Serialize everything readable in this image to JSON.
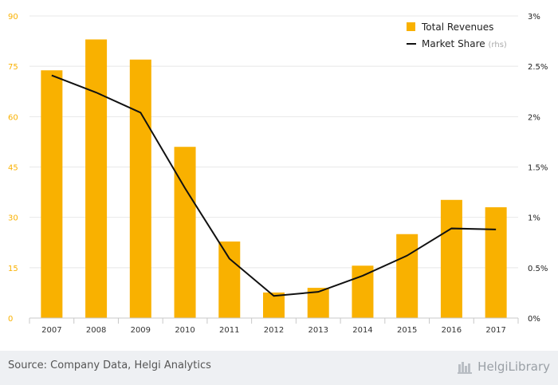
{
  "chart_data": {
    "type": "bar",
    "categories": [
      "2007",
      "2008",
      "2009",
      "2010",
      "2011",
      "2012",
      "2013",
      "2014",
      "2015",
      "2016",
      "2017"
    ],
    "series": [
      {
        "name": "Total Revenues",
        "type": "bar",
        "axis": "left",
        "color": "#f9b100",
        "values": [
          73.8,
          83.0,
          77.0,
          51.0,
          22.8,
          7.6,
          9.0,
          15.6,
          25.0,
          35.2,
          33.0
        ]
      },
      {
        "name": "Market Share",
        "name_suffix": "(rhs)",
        "type": "line",
        "axis": "right",
        "color": "#111111",
        "values": [
          2.41,
          2.24,
          2.04,
          1.29,
          0.59,
          0.22,
          0.26,
          0.42,
          0.62,
          0.89,
          0.88
        ]
      }
    ],
    "y_left": {
      "min": 0,
      "max": 90,
      "ticks": [
        "0",
        "15",
        "30",
        "45",
        "60",
        "75",
        "90"
      ],
      "color": "#f9b100"
    },
    "y_right": {
      "min": 0,
      "max": 3,
      "ticks": [
        "0%",
        "0.5%",
        "1%",
        "1.5%",
        "2%",
        "2.5%",
        "3%"
      ]
    },
    "grid": true,
    "legend_position": "top-right"
  },
  "footer": {
    "source": "Source: Company Data, Helgi Analytics",
    "brand": "HelgiLibrary"
  }
}
